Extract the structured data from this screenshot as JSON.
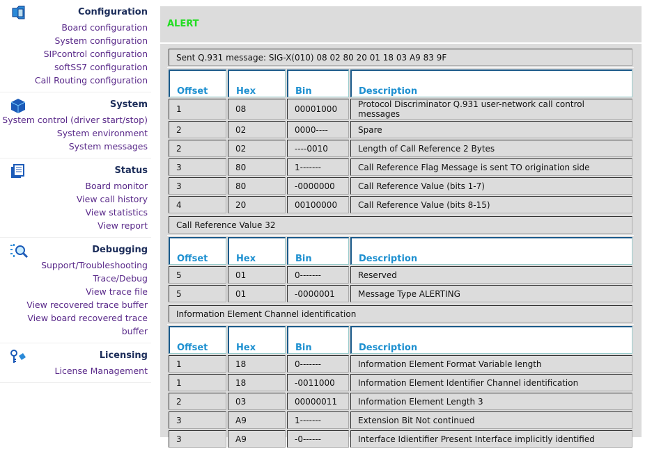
{
  "sidebar": {
    "sections": [
      {
        "title": "Configuration",
        "icon": "configuration-icon",
        "items": [
          "Board configuration",
          "System configuration",
          "SIPcontrol configuration",
          "softSS7 configuration",
          "Call Routing configuration"
        ]
      },
      {
        "title": "System",
        "icon": "system-cube-icon",
        "items": [
          "System control (driver start/stop)",
          "System environment",
          "System messages"
        ]
      },
      {
        "title": "Status",
        "icon": "status-document-icon",
        "items": [
          "Board monitor",
          "View call history",
          "View statistics",
          "View report"
        ]
      },
      {
        "title": "Debugging",
        "icon": "debugging-magnifier-icon",
        "items": [
          "Support/Troubleshooting",
          "Trace/Debug",
          "View trace file",
          "View recovered trace buffer",
          "View board recovered trace buffer"
        ]
      },
      {
        "title": "Licensing",
        "icon": "licensing-key-icon",
        "items": [
          "License Management"
        ]
      }
    ]
  },
  "main": {
    "title": "ALERT",
    "columns": [
      "Offset",
      "Hex",
      "Bin",
      "Description"
    ],
    "sections": [
      {
        "caption": "Sent Q.931 message: SIG-X(010) 08 02 80 20 01 18 03 A9 83 9F",
        "rows": [
          [
            "1",
            "08",
            "00001000",
            "Protocol Discriminator Q.931 user-network call control messages"
          ],
          [
            "2",
            "02",
            "0000----",
            "Spare"
          ],
          [
            "2",
            "02",
            "----0010",
            "Length of Call Reference 2 Bytes"
          ],
          [
            "3",
            "80",
            "1-------",
            "Call Reference Flag Message is sent TO origination side"
          ],
          [
            "3",
            "80",
            "-0000000",
            "Call Reference Value (bits 1-7)"
          ],
          [
            "4",
            "20",
            "00100000",
            "Call Reference Value (bits 8-15)"
          ]
        ]
      },
      {
        "caption": "Call Reference Value 32",
        "rows": [
          [
            "5",
            "01",
            "0-------",
            "Reserved"
          ],
          [
            "5",
            "01",
            "-0000001",
            "Message Type ALERTING"
          ]
        ]
      },
      {
        "caption": "Information Element Channel identification",
        "rows": [
          [
            "1",
            "18",
            "0-------",
            "Information Element Format Variable length"
          ],
          [
            "1",
            "18",
            "-0011000",
            "Information Element Identifier Channel identification"
          ],
          [
            "2",
            "03",
            "00000011",
            "Information Element Length 3"
          ],
          [
            "3",
            "A9",
            "1-------",
            "Extension Bit Not continued"
          ],
          [
            "3",
            "A9",
            "-0------",
            "Interface Idientifier Present Interface implicitly identified"
          ]
        ]
      }
    ]
  }
}
